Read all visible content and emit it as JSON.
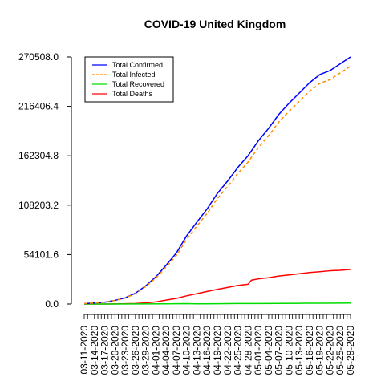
{
  "chart_data": {
    "type": "line",
    "title": "COVID-19 United Kingdom",
    "xlabel": "",
    "ylabel": "",
    "ylim": [
      0.0,
      270508.0
    ],
    "yticks": [
      "0.0",
      "54101.6",
      "108203.2",
      "162304.8",
      "216406.4",
      "270508.0"
    ],
    "ytick_values": [
      0,
      54101.6,
      108203.2,
      162304.8,
      216406.4,
      270508.0
    ],
    "x_start": "03-11-2020",
    "x_end": "05-28-2020",
    "xtick_labels": [
      "03-11-2020",
      "03-14-2020",
      "03-17-2020",
      "03-20-2020",
      "03-23-2020",
      "03-26-2020",
      "03-29-2020",
      "04-01-2020",
      "04-04-2020",
      "04-07-2020",
      "04-10-2020",
      "04-13-2020",
      "04-16-2020",
      "04-19-2020",
      "04-22-2020",
      "04-25-2020",
      "04-28-2020",
      "05-01-2020",
      "05-04-2020",
      "05-07-2020",
      "05-10-2020",
      "05-13-2020",
      "05-16-2020",
      "05-19-2020",
      "05-22-2020",
      "05-25-2020",
      "05-28-2020"
    ],
    "legend_position": "top-left",
    "series": [
      {
        "name": "Total Confirmed",
        "color": "#0000ff",
        "dash": "solid",
        "points": [
          [
            "03-11-2020",
            460
          ],
          [
            "03-14-2020",
            1140
          ],
          [
            "03-17-2020",
            1960
          ],
          [
            "03-20-2020",
            4000
          ],
          [
            "03-23-2020",
            6700
          ],
          [
            "03-26-2020",
            11800
          ],
          [
            "03-29-2020",
            19800
          ],
          [
            "04-01-2020",
            29800
          ],
          [
            "04-04-2020",
            42500
          ],
          [
            "04-07-2020",
            55900
          ],
          [
            "04-10-2020",
            74600
          ],
          [
            "04-13-2020",
            89600
          ],
          [
            "04-16-2020",
            104100
          ],
          [
            "04-19-2020",
            121100
          ],
          [
            "04-22-2020",
            134600
          ],
          [
            "04-25-2020",
            149600
          ],
          [
            "04-28-2020",
            162400
          ],
          [
            "05-01-2020",
            178700
          ],
          [
            "05-04-2020",
            192300
          ],
          [
            "05-07-2020",
            207600
          ],
          [
            "05-10-2020",
            219900
          ],
          [
            "05-13-2020",
            231000
          ],
          [
            "05-16-2020",
            242300
          ],
          [
            "05-19-2020",
            251200
          ],
          [
            "05-22-2020",
            255600
          ],
          [
            "05-25-2020",
            263000
          ],
          [
            "05-28-2020",
            270508
          ]
        ]
      },
      {
        "name": "Total Infected",
        "color": "#ff8c00",
        "dash": "dashed",
        "points": [
          [
            "03-11-2020",
            460
          ],
          [
            "03-14-2020",
            1140
          ],
          [
            "03-17-2020",
            1960
          ],
          [
            "03-20-2020",
            3900
          ],
          [
            "03-23-2020",
            6500
          ],
          [
            "03-26-2020",
            11400
          ],
          [
            "03-29-2020",
            19000
          ],
          [
            "04-01-2020",
            28500
          ],
          [
            "04-04-2020",
            40500
          ],
          [
            "04-07-2020",
            53000
          ],
          [
            "04-10-2020",
            70900
          ],
          [
            "04-13-2020",
            85300
          ],
          [
            "04-16-2020",
            99200
          ],
          [
            "04-19-2020",
            115500
          ],
          [
            "04-22-2020",
            128600
          ],
          [
            "04-25-2020",
            143000
          ],
          [
            "04-28-2020",
            155400
          ],
          [
            "05-01-2020",
            171200
          ],
          [
            "05-04-2020",
            184400
          ],
          [
            "05-07-2020",
            199200
          ],
          [
            "05-10-2020",
            211100
          ],
          [
            "05-13-2020",
            221900
          ],
          [
            "05-16-2020",
            232900
          ],
          [
            "05-19-2020",
            241600
          ],
          [
            "05-22-2020",
            245700
          ],
          [
            "05-25-2020",
            253100
          ],
          [
            "05-28-2020",
            260400
          ]
        ]
      },
      {
        "name": "Total Recovered",
        "color": "#00dd00",
        "dash": "solid",
        "points": [
          [
            "03-11-2020",
            0
          ],
          [
            "03-20-2020",
            50
          ],
          [
            "03-26-2020",
            100
          ],
          [
            "04-04-2020",
            200
          ],
          [
            "04-10-2020",
            400
          ],
          [
            "04-13-2020",
            200
          ],
          [
            "04-19-2020",
            300
          ],
          [
            "04-25-2020",
            500
          ],
          [
            "05-01-2020",
            600
          ],
          [
            "05-07-2020",
            700
          ],
          [
            "05-13-2020",
            800
          ],
          [
            "05-19-2020",
            900
          ],
          [
            "05-25-2020",
            1000
          ],
          [
            "05-28-2020",
            1100
          ]
        ]
      },
      {
        "name": "Total Deaths",
        "color": "#ff0000",
        "dash": "solid",
        "points": [
          [
            "03-11-2020",
            8
          ],
          [
            "03-14-2020",
            21
          ],
          [
            "03-17-2020",
            56
          ],
          [
            "03-20-2020",
            144
          ],
          [
            "03-23-2020",
            336
          ],
          [
            "03-26-2020",
            578
          ],
          [
            "03-29-2020",
            1228
          ],
          [
            "04-01-2020",
            2352
          ],
          [
            "04-04-2020",
            4313
          ],
          [
            "04-07-2020",
            6159
          ],
          [
            "04-10-2020",
            8958
          ],
          [
            "04-13-2020",
            11329
          ],
          [
            "04-16-2020",
            13729
          ],
          [
            "04-19-2020",
            16060
          ],
          [
            "04-22-2020",
            18100
          ],
          [
            "04-25-2020",
            20319
          ],
          [
            "04-28-2020",
            21678
          ],
          [
            "04-29-2020",
            26097
          ],
          [
            "05-01-2020",
            27510
          ],
          [
            "05-04-2020",
            28734
          ],
          [
            "05-07-2020",
            30615
          ],
          [
            "05-10-2020",
            31855
          ],
          [
            "05-13-2020",
            33186
          ],
          [
            "05-16-2020",
            34466
          ],
          [
            "05-19-2020",
            35341
          ],
          [
            "05-22-2020",
            36393
          ],
          [
            "05-25-2020",
            36914
          ],
          [
            "05-28-2020",
            37837
          ]
        ]
      }
    ]
  }
}
